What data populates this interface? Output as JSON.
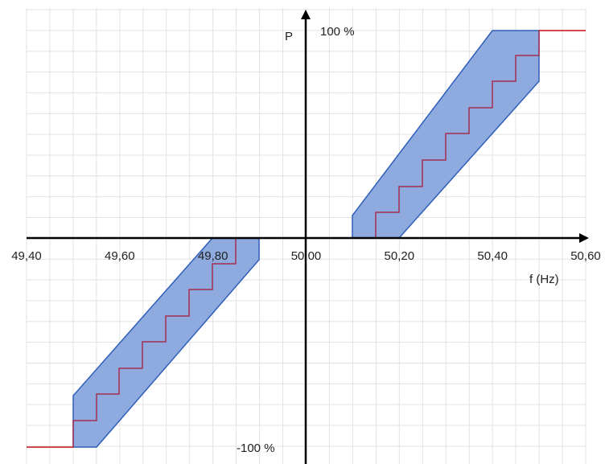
{
  "axes": {
    "y_label": "P",
    "y_top": "100 %",
    "y_bottom": "-100 %",
    "x_label": "f (Hz)",
    "x_ticks": [
      "49,40",
      "49,60",
      "49,80",
      "50,00",
      "50,20",
      "50,40",
      "50,60"
    ]
  }
}
